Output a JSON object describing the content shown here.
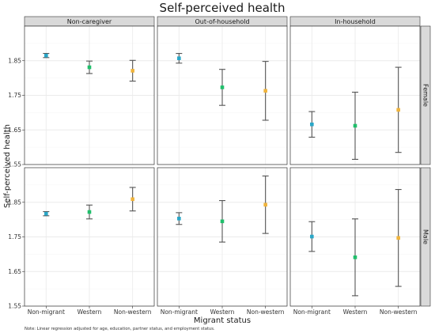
{
  "chart_data": {
    "type": "scatter",
    "title": "Self-perceived health",
    "xlabel": "Migrant status",
    "ylabel": "Self-perceived health",
    "note": "Note: Linear regression adjusted for age, education, partner status, and employment status.",
    "columns": [
      "Non-caregiver",
      "Out-of-household",
      "In-household"
    ],
    "rows": [
      "Female",
      "Male"
    ],
    "categories": [
      "Non-migrant",
      "Western",
      "Non-western"
    ],
    "ylim": [
      1.55,
      1.95
    ],
    "yticks": [
      "1.55",
      "1.65",
      "1.75",
      "1.85"
    ],
    "grid": true,
    "colors": {
      "Non-migrant": "#2aa7c8",
      "Western": "#1fbf6b",
      "Non-western": "#f0b43c",
      "errorbar": "#555555",
      "strip_fill": "#d9d9d9",
      "grid": "#ebebeb"
    },
    "panels": [
      {
        "column": "Non-caregiver",
        "row": "Female",
        "points": [
          {
            "category": "Non-migrant",
            "estimate": 1.865,
            "lower": 1.859,
            "upper": 1.871
          },
          {
            "category": "Western",
            "estimate": 1.831,
            "lower": 1.813,
            "upper": 1.849
          },
          {
            "category": "Non-western",
            "estimate": 1.821,
            "lower": 1.791,
            "upper": 1.851
          }
        ]
      },
      {
        "column": "Out-of-household",
        "row": "Female",
        "points": [
          {
            "category": "Non-migrant",
            "estimate": 1.857,
            "lower": 1.843,
            "upper": 1.871
          },
          {
            "category": "Western",
            "estimate": 1.773,
            "lower": 1.721,
            "upper": 1.825
          },
          {
            "category": "Non-western",
            "estimate": 1.763,
            "lower": 1.678,
            "upper": 1.848
          }
        ]
      },
      {
        "column": "In-household",
        "row": "Female",
        "points": [
          {
            "category": "Non-migrant",
            "estimate": 1.666,
            "lower": 1.629,
            "upper": 1.703
          },
          {
            "category": "Western",
            "estimate": 1.662,
            "lower": 1.565,
            "upper": 1.759
          },
          {
            "category": "Non-western",
            "estimate": 1.708,
            "lower": 1.585,
            "upper": 1.831
          }
        ]
      },
      {
        "column": "Non-caregiver",
        "row": "Male",
        "points": [
          {
            "category": "Non-migrant",
            "estimate": 1.817,
            "lower": 1.811,
            "upper": 1.823
          },
          {
            "category": "Western",
            "estimate": 1.822,
            "lower": 1.802,
            "upper": 1.842
          },
          {
            "category": "Non-western",
            "estimate": 1.859,
            "lower": 1.825,
            "upper": 1.893
          }
        ]
      },
      {
        "column": "Out-of-household",
        "row": "Male",
        "points": [
          {
            "category": "Non-migrant",
            "estimate": 1.803,
            "lower": 1.786,
            "upper": 1.82
          },
          {
            "category": "Western",
            "estimate": 1.795,
            "lower": 1.735,
            "upper": 1.855
          },
          {
            "category": "Non-western",
            "estimate": 1.843,
            "lower": 1.76,
            "upper": 1.926
          }
        ]
      },
      {
        "column": "In-household",
        "row": "Male",
        "points": [
          {
            "category": "Non-migrant",
            "estimate": 1.751,
            "lower": 1.708,
            "upper": 1.794
          },
          {
            "category": "Western",
            "estimate": 1.691,
            "lower": 1.58,
            "upper": 1.802
          },
          {
            "category": "Non-western",
            "estimate": 1.747,
            "lower": 1.607,
            "upper": 1.887
          }
        ]
      }
    ]
  }
}
